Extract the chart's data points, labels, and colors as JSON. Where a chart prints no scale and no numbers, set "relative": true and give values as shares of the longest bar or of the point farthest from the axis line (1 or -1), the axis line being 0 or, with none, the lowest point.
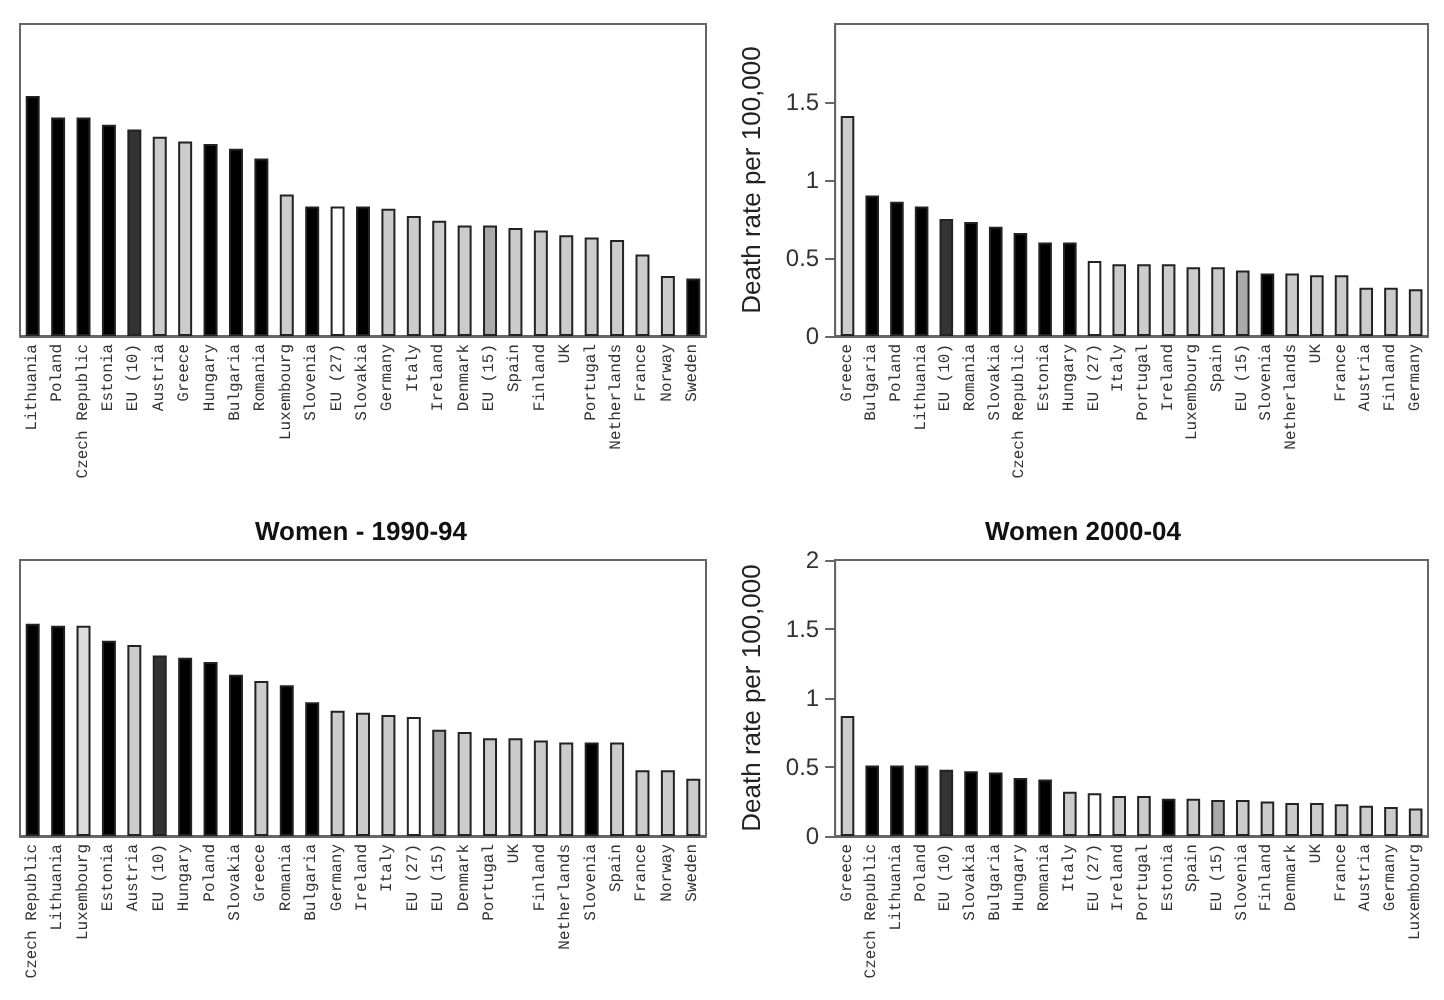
{
  "chart_data": [
    {
      "type": "bar",
      "relative": true,
      "categories": [
        "Lithuania",
        "Poland",
        "Czech Republic",
        "Estonia",
        "EU (10)",
        "Austria",
        "Greece",
        "Hungary",
        "Bulgaria",
        "Romania",
        "Luxembourg",
        "Slovenia",
        "EU (27)",
        "Slovakia",
        "Germany",
        "Italy",
        "Ireland",
        "Denmark",
        "EU (15)",
        "Spain",
        "Finland",
        "UK",
        "Portugal",
        "Netherlands",
        "France",
        "Norway",
        "Sweden"
      ],
      "values": [
        1,
        0.91,
        0.91,
        0.88,
        0.86,
        0.83,
        0.81,
        0.8,
        0.78,
        0.74,
        0.59,
        0.54,
        0.54,
        0.54,
        0.53,
        0.5,
        0.48,
        0.46,
        0.46,
        0.45,
        0.44,
        0.42,
        0.41,
        0.4,
        0.34,
        0.25,
        0.24
      ],
      "colors": [
        "#000000",
        "#000000",
        "#000000",
        "#000000",
        "#333333",
        "#cccccc",
        "#cccccc",
        "#000000",
        "#000000",
        "#000000",
        "#cccccc",
        "#000000",
        "#ffffff",
        "#000000",
        "#cccccc",
        "#cccccc",
        "#cccccc",
        "#cccccc",
        "#aaaaaa",
        "#cccccc",
        "#cccccc",
        "#cccccc",
        "#cccccc",
        "#cccccc",
        "#cccccc",
        "#cccccc",
        "#000000"
      ]
    },
    {
      "type": "bar",
      "ylabel": "Death rate per 100,000",
      "ylim": [
        0,
        2
      ],
      "yticks": [
        0,
        0.5,
        1,
        1.5
      ],
      "categories": [
        "Greece",
        "Bulgaria",
        "Poland",
        "Lithuania",
        "EU (10)",
        "Romania",
        "Slovakia",
        "Czech Republic",
        "Estonia",
        "Hungary",
        "EU (27)",
        "Italy",
        "Portugal",
        "Ireland",
        "Luxembourg",
        "Spain",
        "EU (15)",
        "Slovenia",
        "Netherlands",
        "UK",
        "France",
        "Austria",
        "Finland",
        "Germany"
      ],
      "values": [
        1.41,
        0.9,
        0.86,
        0.83,
        0.75,
        0.73,
        0.7,
        0.66,
        0.6,
        0.6,
        0.48,
        0.46,
        0.46,
        0.46,
        0.44,
        0.44,
        0.42,
        0.4,
        0.4,
        0.39,
        0.39,
        0.31,
        0.31,
        0.3
      ],
      "colors": [
        "#cccccc",
        "#000000",
        "#000000",
        "#000000",
        "#333333",
        "#000000",
        "#000000",
        "#000000",
        "#000000",
        "#000000",
        "#ffffff",
        "#cccccc",
        "#cccccc",
        "#cccccc",
        "#cccccc",
        "#cccccc",
        "#aaaaaa",
        "#000000",
        "#cccccc",
        "#cccccc",
        "#cccccc",
        "#cccccc",
        "#cccccc",
        "#cccccc"
      ]
    },
    {
      "type": "bar",
      "title": "Women - 1990-94",
      "relative": true,
      "categories": [
        "Czech Republic",
        "Lithuania",
        "Luxembourg",
        "Estonia",
        "Austria",
        "EU (10)",
        "Hungary",
        "Poland",
        "Slovakia",
        "Greece",
        "Romania",
        "Bulgaria",
        "Germany",
        "Ireland",
        "Italy",
        "EU (27)",
        "EU (15)",
        "Denmark",
        "Portugal",
        "UK",
        "Finland",
        "Netherlands",
        "Slovenia",
        "Spain",
        "France",
        "Norway",
        "Sweden"
      ],
      "values": [
        1,
        0.99,
        0.99,
        0.92,
        0.9,
        0.85,
        0.84,
        0.82,
        0.76,
        0.73,
        0.71,
        0.63,
        0.59,
        0.58,
        0.57,
        0.56,
        0.5,
        0.49,
        0.46,
        0.46,
        0.45,
        0.44,
        0.44,
        0.44,
        0.31,
        0.31,
        0.27
      ],
      "colors": [
        "#000000",
        "#000000",
        "#dddddd",
        "#000000",
        "#cccccc",
        "#333333",
        "#000000",
        "#000000",
        "#000000",
        "#cccccc",
        "#000000",
        "#000000",
        "#cccccc",
        "#cccccc",
        "#cccccc",
        "#ffffff",
        "#aaaaaa",
        "#cccccc",
        "#cccccc",
        "#cccccc",
        "#cccccc",
        "#cccccc",
        "#000000",
        "#cccccc",
        "#cccccc",
        "#cccccc",
        "#cccccc"
      ]
    },
    {
      "type": "bar",
      "title": "Women 2000-04",
      "ylabel": "Death rate per 100,000",
      "ylim": [
        0,
        2
      ],
      "yticks": [
        0,
        0.5,
        1,
        1.5,
        2
      ],
      "categories": [
        "Greece",
        "Czech Republic",
        "Lithuania",
        "Poland",
        "EU (10)",
        "Slovakia",
        "Bulgaria",
        "Hungary",
        "Romania",
        "Italy",
        "EU (27)",
        "Ireland",
        "Portugal",
        "Estonia",
        "Spain",
        "EU (15)",
        "Slovenia",
        "Finland",
        "Denmark",
        "UK",
        "France",
        "Austria",
        "Germany",
        "Luxembourg"
      ],
      "values": [
        0.87,
        0.51,
        0.51,
        0.51,
        0.48,
        0.47,
        0.46,
        0.42,
        0.41,
        0.32,
        0.31,
        0.29,
        0.29,
        0.27,
        0.27,
        0.26,
        0.26,
        0.25,
        0.24,
        0.24,
        0.23,
        0.22,
        0.21,
        0.2
      ],
      "colors": [
        "#cccccc",
        "#000000",
        "#000000",
        "#000000",
        "#333333",
        "#000000",
        "#000000",
        "#000000",
        "#000000",
        "#cccccc",
        "#ffffff",
        "#cccccc",
        "#cccccc",
        "#000000",
        "#cccccc",
        "#aaaaaa",
        "#cccccc",
        "#cccccc",
        "#cccccc",
        "#cccccc",
        "#cccccc",
        "#cccccc",
        "#cccccc",
        "#cccccc"
      ]
    }
  ]
}
